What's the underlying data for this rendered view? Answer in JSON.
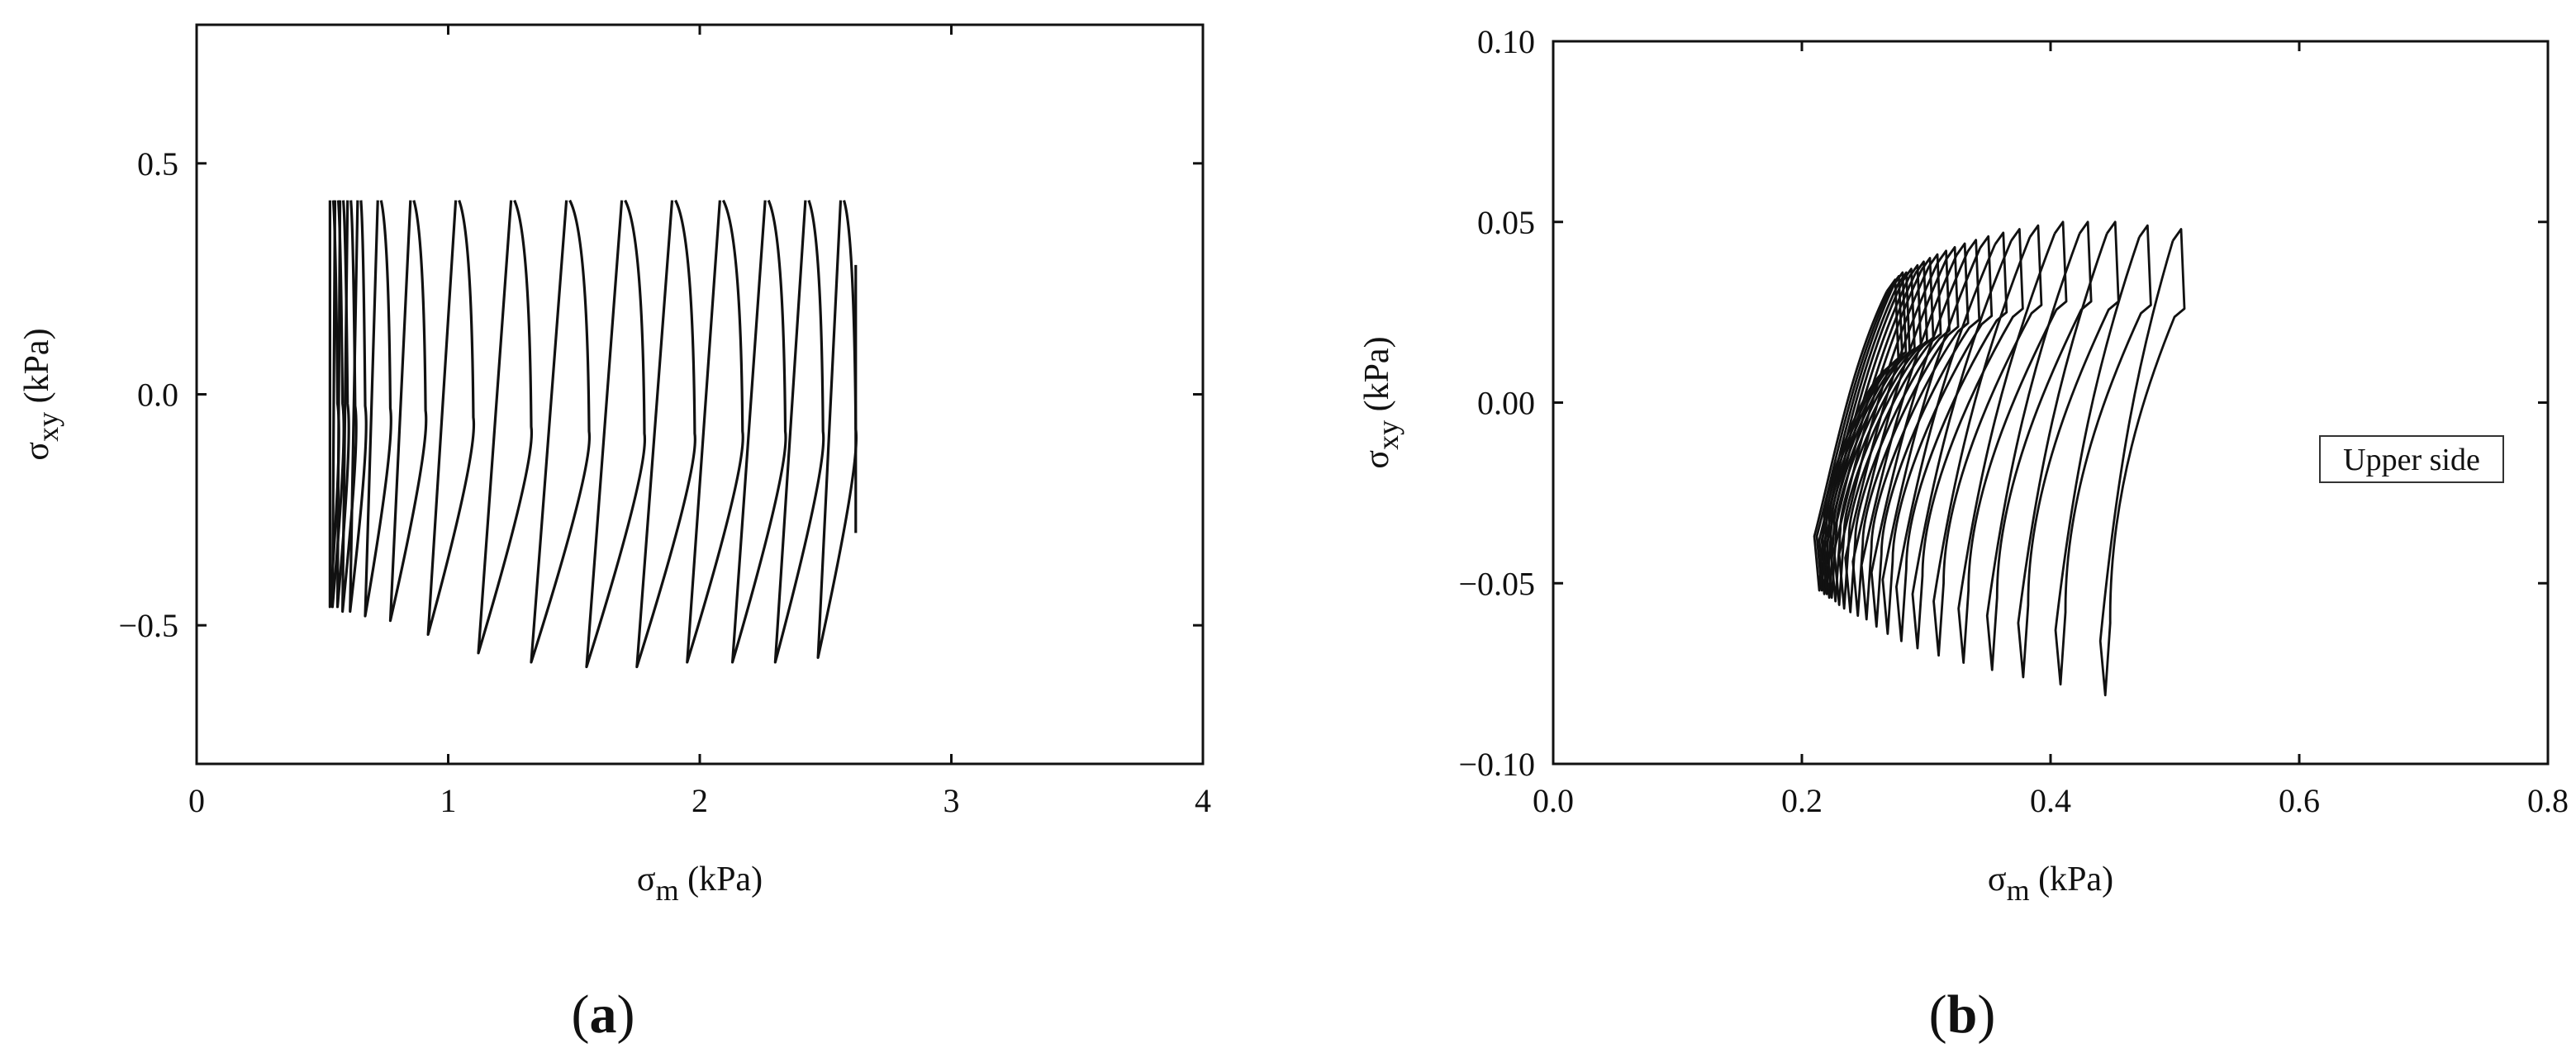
{
  "chart_data": [
    {
      "type": "line",
      "panel_label": {
        "open": "(",
        "letter": "a",
        "close": ")"
      },
      "xlabel": {
        "symbol": "σ",
        "sub": "m",
        "unit": " (kPa)"
      },
      "ylabel": {
        "symbol": "σ",
        "sub": "xy",
        "unit": " (kPa)"
      },
      "xlim": [
        0,
        4
      ],
      "ylim": [
        -0.8,
        0.8
      ],
      "xticks": [
        0,
        1,
        2,
        3,
        4
      ],
      "xtick_labels": [
        "0",
        "1",
        "2",
        "3",
        "4"
      ],
      "yticks": [
        -0.5,
        0,
        0.5
      ],
      "ytick_labels": [
        "−0.5",
        "0.0",
        "0.5"
      ],
      "grid": false,
      "line_color": "#111111",
      "loops": [
        {
          "x_top": 0.53,
          "x_bottom": 0.53,
          "x_mid": 0.56,
          "y_top": 0.42,
          "y_bottom": -0.46
        },
        {
          "x_top": 0.55,
          "x_bottom": 0.54,
          "x_mid": 0.58,
          "y_top": 0.42,
          "y_bottom": -0.46
        },
        {
          "x_top": 0.57,
          "x_bottom": 0.56,
          "x_mid": 0.6,
          "y_top": 0.42,
          "y_bottom": -0.46
        },
        {
          "x_top": 0.6,
          "x_bottom": 0.58,
          "x_mid": 0.63,
          "y_top": 0.42,
          "y_bottom": -0.47
        },
        {
          "x_top": 0.64,
          "x_bottom": 0.61,
          "x_mid": 0.67,
          "y_top": 0.42,
          "y_bottom": -0.47
        },
        {
          "x_top": 0.72,
          "x_bottom": 0.67,
          "x_mid": 0.77,
          "y_top": 0.42,
          "y_bottom": -0.48
        },
        {
          "x_top": 0.85,
          "x_bottom": 0.77,
          "x_mid": 0.91,
          "y_top": 0.42,
          "y_bottom": -0.49
        },
        {
          "x_top": 1.03,
          "x_bottom": 0.92,
          "x_mid": 1.1,
          "y_top": 0.42,
          "y_bottom": -0.52
        },
        {
          "x_top": 1.25,
          "x_bottom": 1.12,
          "x_mid": 1.33,
          "y_top": 0.42,
          "y_bottom": -0.56
        },
        {
          "x_top": 1.47,
          "x_bottom": 1.33,
          "x_mid": 1.56,
          "y_top": 0.42,
          "y_bottom": -0.58
        },
        {
          "x_top": 1.69,
          "x_bottom": 1.55,
          "x_mid": 1.78,
          "y_top": 0.42,
          "y_bottom": -0.59
        },
        {
          "x_top": 1.89,
          "x_bottom": 1.75,
          "x_mid": 1.98,
          "y_top": 0.42,
          "y_bottom": -0.59
        },
        {
          "x_top": 2.08,
          "x_bottom": 1.95,
          "x_mid": 2.17,
          "y_top": 0.42,
          "y_bottom": -0.58
        },
        {
          "x_top": 2.26,
          "x_bottom": 2.13,
          "x_mid": 2.34,
          "y_top": 0.42,
          "y_bottom": -0.58
        },
        {
          "x_top": 2.42,
          "x_bottom": 2.3,
          "x_mid": 2.49,
          "y_top": 0.42,
          "y_bottom": -0.58
        },
        {
          "x_top": 2.56,
          "x_bottom": 2.47,
          "x_mid": 2.62,
          "y_top": 0.42,
          "y_bottom": -0.57
        }
      ],
      "final_tail": {
        "x": 2.62,
        "y_top": 0.28,
        "y_end": -0.3
      }
    },
    {
      "type": "line",
      "panel_label": {
        "open": "(",
        "letter": "b",
        "close": ")"
      },
      "xlabel": {
        "symbol": "σ",
        "sub": "m",
        "unit": " (kPa)"
      },
      "ylabel": {
        "symbol": "σ",
        "sub": "xy",
        "unit": " (kPa)"
      },
      "xlim": [
        0.0,
        0.8
      ],
      "ylim": [
        -0.1,
        0.1
      ],
      "xticks": [
        0.0,
        0.2,
        0.4,
        0.6,
        0.8
      ],
      "xtick_labels": [
        "0.0",
        "0.2",
        "0.4",
        "0.6",
        "0.8"
      ],
      "yticks": [
        -0.1,
        -0.05,
        0.0,
        0.05,
        0.1
      ],
      "ytick_labels": [
        "−0.10",
        "−0.05",
        "0.00",
        "0.05",
        "0.10"
      ],
      "grid": false,
      "legend": {
        "text": "Upper side",
        "position": "right"
      },
      "line_color": "#111111",
      "curves": [
        {
          "x_top": 0.275,
          "y_top": 0.034,
          "x_bottom": 0.214,
          "y_bottom": -0.052
        },
        {
          "x_top": 0.278,
          "y_top": 0.035,
          "x_bottom": 0.216,
          "y_bottom": -0.052
        },
        {
          "x_top": 0.281,
          "y_top": 0.036,
          "x_bottom": 0.218,
          "y_bottom": -0.053
        },
        {
          "x_top": 0.284,
          "y_top": 0.036,
          "x_bottom": 0.22,
          "y_bottom": -0.053
        },
        {
          "x_top": 0.288,
          "y_top": 0.037,
          "x_bottom": 0.222,
          "y_bottom": -0.054
        },
        {
          "x_top": 0.293,
          "y_top": 0.038,
          "x_bottom": 0.224,
          "y_bottom": -0.054
        },
        {
          "x_top": 0.298,
          "y_top": 0.039,
          "x_bottom": 0.227,
          "y_bottom": -0.055
        },
        {
          "x_top": 0.303,
          "y_top": 0.04,
          "x_bottom": 0.23,
          "y_bottom": -0.056
        },
        {
          "x_top": 0.309,
          "y_top": 0.041,
          "x_bottom": 0.234,
          "y_bottom": -0.057
        },
        {
          "x_top": 0.316,
          "y_top": 0.042,
          "x_bottom": 0.239,
          "y_bottom": -0.058
        },
        {
          "x_top": 0.323,
          "y_top": 0.043,
          "x_bottom": 0.245,
          "y_bottom": -0.059
        },
        {
          "x_top": 0.331,
          "y_top": 0.044,
          "x_bottom": 0.252,
          "y_bottom": -0.06
        },
        {
          "x_top": 0.34,
          "y_top": 0.045,
          "x_bottom": 0.26,
          "y_bottom": -0.062
        },
        {
          "x_top": 0.35,
          "y_top": 0.046,
          "x_bottom": 0.269,
          "y_bottom": -0.064
        },
        {
          "x_top": 0.362,
          "y_top": 0.047,
          "x_bottom": 0.28,
          "y_bottom": -0.066
        },
        {
          "x_top": 0.375,
          "y_top": 0.048,
          "x_bottom": 0.293,
          "y_bottom": -0.068
        },
        {
          "x_top": 0.39,
          "y_top": 0.049,
          "x_bottom": 0.31,
          "y_bottom": -0.07
        },
        {
          "x_top": 0.41,
          "y_top": 0.05,
          "x_bottom": 0.33,
          "y_bottom": -0.072
        },
        {
          "x_top": 0.43,
          "y_top": 0.05,
          "x_bottom": 0.353,
          "y_bottom": -0.074
        },
        {
          "x_top": 0.452,
          "y_top": 0.05,
          "x_bottom": 0.378,
          "y_bottom": -0.076
        },
        {
          "x_top": 0.478,
          "y_top": 0.049,
          "x_bottom": 0.408,
          "y_bottom": -0.078
        },
        {
          "x_top": 0.505,
          "y_top": 0.048,
          "x_bottom": 0.444,
          "y_bottom": -0.081
        }
      ]
    }
  ]
}
